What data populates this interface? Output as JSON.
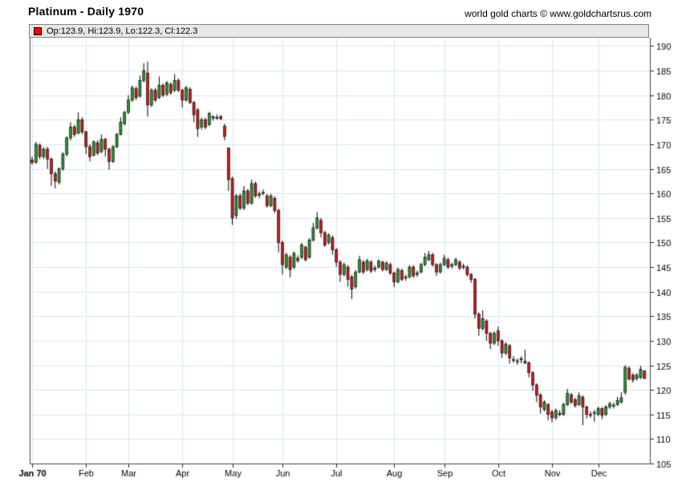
{
  "header": {
    "title": "Platinum - Daily 1970",
    "copyright": "world gold charts © www.goldchartsrus.com"
  },
  "legend": {
    "ohlc": "Op:123.9, Hi:123.9, Lo:122.3, Cl:122.3",
    "swatch_color": "#ff0000"
  },
  "chart_data": {
    "type": "candlestick",
    "title": "Platinum - Daily 1970",
    "xlabel": "",
    "ylabel": "",
    "ylim": [
      105,
      191.7
    ],
    "grid": true,
    "legend_position": "top-bar",
    "y_ticks": [
      190,
      185,
      180,
      175,
      170,
      165,
      160,
      155,
      150,
      145,
      140,
      135,
      130,
      125,
      120,
      115,
      110,
      105
    ],
    "x_tick_labels": [
      "Jan 70",
      "Feb",
      "Mar",
      "Apr",
      "May",
      "Jun",
      "Jul",
      "Aug",
      "Sep",
      "Oct",
      "Nov",
      "Dec"
    ],
    "x_tick_indices": [
      0,
      14,
      25,
      39,
      52,
      65,
      79,
      94,
      107,
      121,
      135,
      147
    ],
    "colors": {
      "up": "#2c9632",
      "down": "#cc1a1a",
      "wick": "#000000",
      "grid": "#d7e7f6",
      "frame": "#444444",
      "text": "#000000",
      "legend_bg": "#e7e7e7"
    },
    "last_candle_readout": {
      "open": 123.9,
      "high": 123.9,
      "low": 122.3,
      "close": 122.3
    },
    "candles": [
      [
        166.8,
        167.5,
        165.8,
        166.3
      ],
      [
        166.3,
        170.5,
        166.0,
        170.0
      ],
      [
        169.8,
        170.2,
        167.0,
        167.5
      ],
      [
        167.5,
        169.4,
        167.0,
        169.0
      ],
      [
        169.0,
        169.5,
        165.0,
        167.0
      ],
      [
        167.0,
        167.3,
        161.5,
        164.0
      ],
      [
        164.0,
        164.5,
        161.0,
        162.5
      ],
      [
        162.3,
        165.3,
        161.8,
        165.0
      ],
      [
        165.0,
        168.4,
        164.6,
        168.0
      ],
      [
        168.0,
        171.6,
        167.5,
        171.3
      ],
      [
        171.3,
        174.5,
        170.8,
        173.5
      ],
      [
        173.5,
        174.0,
        171.5,
        172.0
      ],
      [
        172.3,
        176.5,
        172.0,
        175.0
      ],
      [
        175.0,
        175.5,
        172.0,
        172.5
      ],
      [
        172.5,
        172.8,
        168.0,
        169.5
      ],
      [
        169.5,
        170.0,
        166.5,
        167.5
      ],
      [
        167.8,
        170.8,
        167.5,
        170.5
      ],
      [
        170.3,
        170.8,
        167.8,
        168.2
      ],
      [
        168.5,
        172.0,
        168.2,
        171.0
      ],
      [
        171.0,
        171.3,
        167.5,
        169.0
      ],
      [
        169.0,
        169.3,
        164.8,
        166.5
      ],
      [
        166.5,
        169.8,
        166.2,
        169.5
      ],
      [
        169.5,
        172.3,
        169.2,
        172.0
      ],
      [
        172.0,
        175.5,
        171.8,
        174.5
      ],
      [
        174.2,
        176.8,
        173.8,
        176.5
      ],
      [
        176.5,
        180.0,
        176.2,
        179.0
      ],
      [
        179.0,
        182.0,
        178.6,
        181.5
      ],
      [
        181.3,
        181.8,
        179.0,
        179.5
      ],
      [
        179.8,
        184.0,
        179.5,
        183.0
      ],
      [
        183.0,
        186.5,
        182.6,
        185.0
      ],
      [
        184.5,
        186.8,
        175.6,
        178.0
      ],
      [
        178.0,
        181.4,
        177.6,
        181.0
      ],
      [
        181.0,
        181.5,
        178.6,
        179.0
      ],
      [
        179.5,
        183.8,
        179.2,
        182.0
      ],
      [
        182.0,
        182.4,
        179.6,
        180.0
      ],
      [
        180.2,
        182.9,
        179.8,
        182.5
      ],
      [
        182.2,
        182.6,
        180.1,
        180.5
      ],
      [
        181.0,
        184.3,
        180.6,
        183.0
      ],
      [
        183.0,
        183.4,
        180.6,
        181.0
      ],
      [
        181.0,
        181.3,
        177.5,
        179.0
      ],
      [
        179.0,
        181.9,
        178.7,
        181.5
      ],
      [
        181.2,
        181.6,
        178.2,
        178.5
      ],
      [
        178.5,
        178.8,
        174.5,
        176.0
      ],
      [
        177.0,
        177.4,
        171.5,
        173.2
      ],
      [
        173.5,
        175.4,
        173.0,
        175.0
      ],
      [
        175.0,
        175.4,
        173.1,
        173.5
      ],
      [
        174.0,
        176.6,
        173.7,
        176.3
      ],
      [
        175.3,
        175.9,
        174.8,
        175.6
      ],
      [
        175.5,
        176.1,
        175.0,
        175.4
      ],
      [
        175.6,
        176.0,
        174.9,
        175.2
      ],
      [
        173.7,
        174.2,
        170.8,
        171.6
      ],
      [
        169.2,
        169.4,
        160.5,
        162.8
      ],
      [
        163.0,
        163.4,
        153.6,
        155.0
      ],
      [
        155.5,
        159.9,
        154.8,
        159.5
      ],
      [
        159.5,
        160.0,
        156.6,
        157.0
      ],
      [
        157.0,
        161.5,
        156.6,
        160.5
      ],
      [
        160.5,
        160.9,
        157.6,
        158.0
      ],
      [
        158.0,
        162.8,
        157.7,
        162.0
      ],
      [
        162.0,
        162.4,
        159.1,
        159.5
      ],
      [
        159.6,
        160.4,
        159.0,
        159.9
      ],
      [
        160.2,
        160.8,
        159.6,
        160.0
      ],
      [
        159.5,
        159.9,
        157.1,
        157.5
      ],
      [
        157.5,
        159.9,
        157.2,
        159.5
      ],
      [
        159.0,
        159.4,
        156.0,
        156.5
      ],
      [
        156.5,
        156.9,
        148.0,
        150.0
      ],
      [
        150.0,
        150.4,
        143.5,
        145.5
      ],
      [
        145.0,
        147.9,
        144.6,
        147.5
      ],
      [
        147.0,
        147.4,
        142.9,
        144.5
      ],
      [
        145.0,
        148.2,
        144.6,
        147.8
      ],
      [
        146.8,
        147.4,
        145.9,
        146.3
      ],
      [
        147.0,
        149.9,
        146.6,
        149.5
      ],
      [
        149.0,
        149.4,
        146.1,
        146.5
      ],
      [
        147.0,
        150.9,
        146.7,
        150.5
      ],
      [
        150.5,
        154.0,
        150.2,
        153.0
      ],
      [
        153.0,
        156.2,
        152.6,
        155.0
      ],
      [
        154.5,
        155.0,
        151.0,
        152.0
      ],
      [
        152.0,
        152.4,
        149.1,
        149.5
      ],
      [
        150.0,
        151.9,
        149.6,
        151.5
      ],
      [
        151.0,
        151.4,
        147.5,
        148.5
      ],
      [
        148.5,
        148.9,
        145.0,
        146.0
      ],
      [
        146.0,
        146.4,
        142.0,
        143.5
      ],
      [
        143.5,
        145.9,
        143.1,
        145.5
      ],
      [
        145.0,
        145.4,
        141.0,
        142.5
      ],
      [
        143.0,
        143.4,
        138.5,
        140.5
      ],
      [
        141.0,
        144.4,
        140.6,
        144.0
      ],
      [
        144.0,
        147.3,
        143.7,
        146.5
      ],
      [
        146.0,
        146.4,
        143.6,
        144.0
      ],
      [
        144.5,
        146.7,
        144.1,
        146.3
      ],
      [
        146.0,
        146.4,
        143.8,
        144.2
      ],
      [
        144.5,
        145.3,
        144.0,
        144.8
      ],
      [
        145.0,
        146.6,
        144.7,
        146.2
      ],
      [
        146.0,
        146.3,
        144.1,
        144.5
      ],
      [
        144.5,
        146.2,
        144.2,
        145.8
      ],
      [
        145.5,
        145.9,
        143.4,
        143.8
      ],
      [
        143.8,
        144.1,
        140.9,
        142.0
      ],
      [
        142.0,
        144.9,
        141.7,
        144.5
      ],
      [
        144.3,
        144.7,
        142.1,
        142.5
      ],
      [
        142.8,
        143.5,
        142.2,
        143.0
      ],
      [
        143.0,
        145.4,
        142.7,
        145.0
      ],
      [
        145.0,
        145.4,
        142.8,
        143.2
      ],
      [
        143.5,
        144.3,
        143.0,
        143.8
      ],
      [
        144.0,
        145.9,
        143.7,
        145.5
      ],
      [
        145.5,
        147.9,
        145.2,
        147.0
      ],
      [
        146.5,
        148.3,
        146.2,
        147.5
      ],
      [
        147.5,
        147.9,
        145.1,
        145.5
      ],
      [
        145.5,
        145.8,
        143.2,
        144.0
      ],
      [
        144.0,
        145.9,
        143.7,
        145.5
      ],
      [
        145.5,
        147.5,
        145.2,
        146.8
      ],
      [
        146.5,
        146.9,
        144.6,
        145.0
      ],
      [
        145.2,
        145.9,
        144.7,
        145.5
      ],
      [
        145.5,
        146.9,
        145.2,
        146.5
      ],
      [
        146.0,
        146.4,
        144.4,
        144.8
      ],
      [
        145.0,
        145.7,
        144.5,
        145.2
      ],
      [
        145.0,
        145.3,
        143.1,
        143.5
      ],
      [
        143.5,
        143.8,
        141.8,
        142.5
      ],
      [
        142.5,
        142.8,
        134.5,
        135.4
      ],
      [
        135.4,
        135.8,
        131.0,
        132.5
      ],
      [
        132.5,
        136.2,
        132.1,
        134.5
      ],
      [
        134.0,
        134.4,
        130.0,
        131.5
      ],
      [
        131.5,
        131.8,
        128.3,
        129.5
      ],
      [
        129.5,
        131.9,
        129.1,
        131.5
      ],
      [
        132.0,
        132.9,
        129.0,
        130.0
      ],
      [
        130.0,
        130.3,
        126.5,
        127.5
      ],
      [
        127.5,
        129.7,
        127.1,
        129.3
      ],
      [
        129.0,
        129.3,
        125.3,
        126.5
      ],
      [
        126.2,
        126.9,
        125.5,
        126.0
      ],
      [
        125.7,
        126.4,
        125.1,
        125.9
      ],
      [
        126.1,
        126.8,
        125.4,
        126.4
      ],
      [
        125.8,
        128.2,
        125.2,
        125.5
      ],
      [
        125.5,
        125.8,
        122.5,
        123.5
      ],
      [
        123.5,
        123.8,
        119.8,
        121.0
      ],
      [
        121.0,
        121.3,
        117.5,
        118.9
      ],
      [
        119.0,
        119.3,
        115.2,
        116.5
      ],
      [
        116.0,
        117.9,
        115.6,
        117.5
      ],
      [
        117.0,
        117.3,
        113.8,
        115.0
      ],
      [
        115.5,
        115.9,
        113.4,
        114.3
      ],
      [
        114.3,
        116.2,
        113.9,
        115.8
      ],
      [
        115.2,
        115.9,
        114.6,
        115.0
      ],
      [
        115.0,
        117.4,
        114.7,
        117.0
      ],
      [
        117.0,
        120.2,
        116.7,
        119.3
      ],
      [
        119.0,
        119.4,
        117.1,
        117.5
      ],
      [
        118.0,
        118.4,
        116.4,
        116.8
      ],
      [
        117.0,
        119.5,
        116.7,
        118.8
      ],
      [
        118.5,
        118.9,
        112.8,
        116.5
      ],
      [
        116.5,
        116.8,
        114.2,
        115.0
      ],
      [
        115.0,
        115.6,
        114.3,
        114.8
      ],
      [
        115.2,
        115.9,
        113.5,
        115.4
      ],
      [
        115.0,
        116.6,
        114.7,
        116.2
      ],
      [
        116.2,
        116.5,
        114.0,
        114.8
      ],
      [
        115.0,
        116.9,
        114.7,
        116.5
      ],
      [
        116.5,
        117.6,
        116.1,
        117.2
      ],
      [
        116.8,
        117.4,
        116.2,
        116.9
      ],
      [
        117.0,
        118.6,
        116.7,
        117.8
      ],
      [
        117.5,
        119.5,
        117.2,
        118.4
      ],
      [
        119.5,
        125.0,
        119.0,
        124.6
      ],
      [
        124.4,
        124.8,
        121.9,
        122.2
      ],
      [
        123.0,
        123.4,
        121.5,
        122.0
      ],
      [
        122.3,
        123.4,
        121.9,
        123.0
      ],
      [
        122.5,
        124.9,
        122.2,
        124.2
      ],
      [
        123.9,
        123.9,
        122.3,
        122.3
      ]
    ]
  }
}
